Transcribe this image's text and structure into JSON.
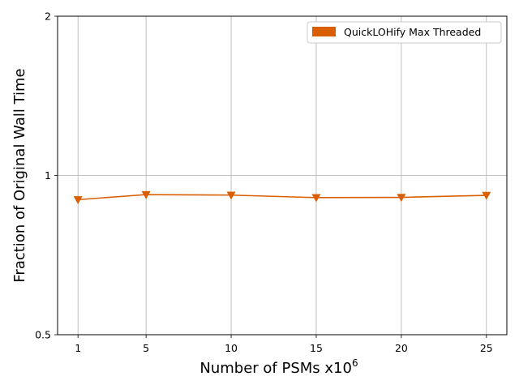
{
  "chart_data": {
    "type": "line",
    "title": "",
    "xlabel": "Number of PSMs x10",
    "xlabel_superscript": "6",
    "ylabel": "Fraction of Original Wall Time",
    "x": [
      1,
      5,
      10,
      15,
      20,
      25
    ],
    "x_ticks": [
      1,
      5,
      10,
      15,
      20,
      25
    ],
    "x_tick_labels": [
      "1",
      "5",
      "10",
      "15",
      "20",
      "25"
    ],
    "xlim": [
      -0.2,
      26.2
    ],
    "y_scale": "log2",
    "ylim": [
      0.5,
      2
    ],
    "y_ticks": [
      0.5,
      1,
      2
    ],
    "y_tick_labels": [
      "0.5",
      "1",
      "2"
    ],
    "grid": "x-major and y at 1",
    "legend_position": "top-right",
    "series": [
      {
        "name": "QuickLOHify Max Threaded",
        "color": "#d95f02",
        "marker": "triangle-down",
        "values": [
          0.9,
          0.92,
          0.918,
          0.908,
          0.909,
          0.917
        ]
      }
    ]
  }
}
